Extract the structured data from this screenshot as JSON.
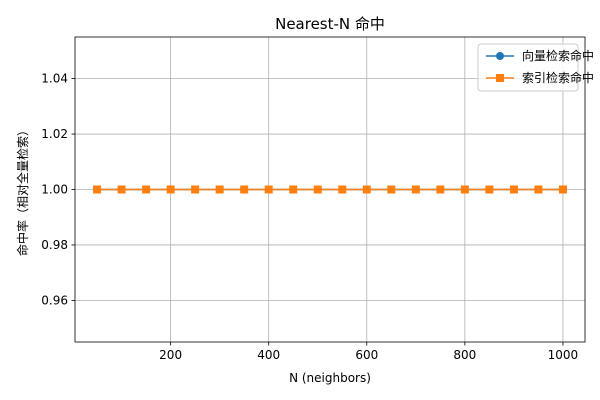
{
  "chart_data": {
    "type": "line",
    "title": "Nearest-N 命中",
    "xlabel": "N (neighbors)",
    "ylabel": "命中率（相对全量检索）",
    "xlim": [
      5,
      1045
    ],
    "ylim": [
      0.945,
      1.055
    ],
    "xticks": [
      200,
      400,
      600,
      800,
      1000
    ],
    "yticks": [
      0.96,
      0.98,
      1.0,
      1.02,
      1.04
    ],
    "ytick_labels": [
      "0.96",
      "0.98",
      "1.00",
      "1.02",
      "1.04"
    ],
    "grid": true,
    "legend_position": "top-right",
    "x": [
      50,
      100,
      150,
      200,
      250,
      300,
      350,
      400,
      450,
      500,
      550,
      600,
      650,
      700,
      750,
      800,
      850,
      900,
      950,
      1000
    ],
    "series": [
      {
        "name": "向量检索命中",
        "color": "#1f77b4",
        "marker": "circle",
        "values": [
          1.0,
          1.0,
          1.0,
          1.0,
          1.0,
          1.0,
          1.0,
          1.0,
          1.0,
          1.0,
          1.0,
          1.0,
          1.0,
          1.0,
          1.0,
          1.0,
          1.0,
          1.0,
          1.0,
          1.0
        ]
      },
      {
        "name": "索引检索命中",
        "color": "#ff7f0e",
        "marker": "square",
        "values": [
          1.0,
          1.0,
          1.0,
          1.0,
          1.0,
          1.0,
          1.0,
          1.0,
          1.0,
          1.0,
          1.0,
          1.0,
          1.0,
          1.0,
          1.0,
          1.0,
          1.0,
          1.0,
          1.0,
          1.0
        ]
      }
    ]
  }
}
